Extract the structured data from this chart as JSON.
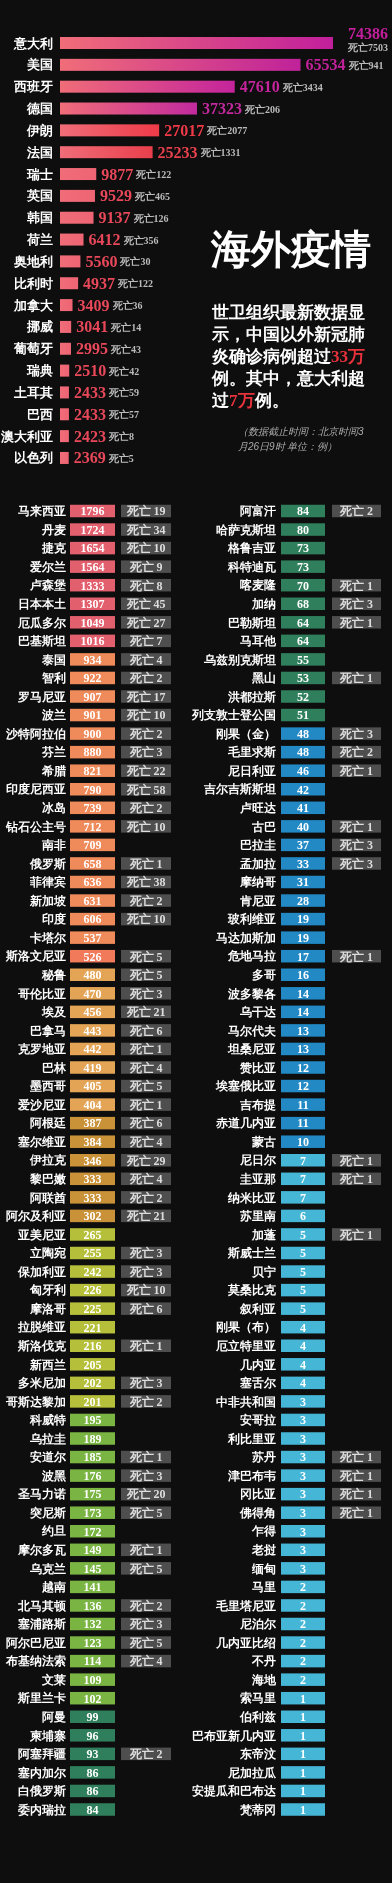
{
  "chart_data": [
    {
      "type": "bar",
      "orientation": "horizontal",
      "title": "海外疫情",
      "subtitle": "世卫组织最新数据显示，中国以外新冠肺炎确诊病例超过33万例。其中，意大利超过7万例。",
      "data_labels": true,
      "categories": [
        "意大利",
        "美国",
        "西班牙",
        "德国",
        "伊朗",
        "法国",
        "瑞士",
        "英国",
        "韩国",
        "荷兰",
        "奥地利",
        "比利时",
        "加拿大",
        "挪威",
        "葡萄牙",
        "瑞典",
        "土耳其",
        "巴西",
        "澳大利亚",
        "以色列"
      ],
      "values": [
        74386,
        65534,
        47610,
        37323,
        27017,
        25233,
        9877,
        9529,
        9137,
        6412,
        5560,
        4937,
        3409,
        3041,
        2995,
        2510,
        2433,
        2433,
        2423,
        2369
      ],
      "colors": [
        "#c21f9c",
        "#c0229a",
        "#c4249c",
        "#c22a9e",
        "#ee3a48",
        "#e8404c",
        "#ee6474",
        "#ee6474",
        "#ee6474",
        "#ee6474",
        "#ee6474",
        "#ee6474",
        "#ee6474",
        "#ee6474",
        "#ee6474",
        "#ee6474",
        "#ee6474",
        "#ee6474",
        "#ee6474",
        "#ee6474"
      ],
      "annotations": [
        "死亡7503",
        "死亡941",
        "死亡3434",
        "死亡206",
        "死亡2077",
        "死亡1331",
        "死亡122",
        "死亡465",
        "死亡126",
        "死亡356",
        "死亡30",
        "死亡122",
        "死亡36",
        "死亡14",
        "死亡43",
        "死亡42",
        "死亡59",
        "死亡57",
        "死亡8",
        "死亡5",
        "（数据截止时间：北京时间3月26日9时 单位：例）"
      ]
    },
    {
      "type": "other",
      "data_labels": true,
      "categories": [
        "马来西亚",
        "丹麦",
        "捷克",
        "爱尔兰",
        "卢森堡",
        "日本本土",
        "厄瓜多尔",
        "巴基斯坦",
        "泰国",
        "智利",
        "罗马尼亚",
        "波兰",
        "沙特阿拉伯",
        "芬兰",
        "希腊",
        "印度尼西亚",
        "冰岛",
        "钻石公主号",
        "南非",
        "俄罗斯",
        "菲律宾",
        "新加坡",
        "印度",
        "卡塔尔",
        "斯洛文尼亚",
        "秘鲁",
        "哥伦比亚",
        "埃及",
        "巴拿马",
        "克罗地亚",
        "巴林",
        "墨西哥",
        "爱沙尼亚",
        "阿根廷",
        "塞尔维亚",
        "伊拉克",
        "黎巴嫩",
        "阿联酋",
        "阿尔及利亚",
        "亚美尼亚",
        "立陶宛",
        "保加利亚",
        "匈牙利",
        "摩洛哥",
        "拉脱维亚",
        "斯洛伐克",
        "新西兰",
        "多米尼加",
        "哥斯达黎加",
        "科威特",
        "乌拉圭",
        "安道尔",
        "波黑",
        "圣马力诺",
        "突尼斯",
        "约旦",
        "摩尔多瓦",
        "乌克兰",
        "越南",
        "北马其顿",
        "塞浦路斯",
        "阿尔巴尼亚",
        "布基纳法索",
        "文莱",
        "斯里兰卡",
        "阿曼",
        "柬埔寨",
        "阿塞拜疆",
        "塞内加尔",
        "白俄罗斯",
        "委内瑞拉"
      ],
      "series": [
        {
          "values": [
            1796,
            1724,
            1654,
            1564,
            1333,
            1307,
            1049,
            1016,
            934,
            922,
            907,
            901,
            900,
            880,
            821,
            790,
            739,
            712,
            709,
            658,
            636,
            631,
            606,
            537,
            526,
            480,
            470,
            456,
            443,
            442,
            419,
            405,
            404,
            387,
            384,
            346,
            333,
            333,
            302,
            265,
            255,
            242,
            226,
            225,
            221,
            216,
            205,
            202,
            201,
            195,
            189,
            185,
            176,
            175,
            173,
            172,
            149,
            145,
            141,
            136,
            132,
            123,
            114,
            109,
            102,
            99,
            96,
            93,
            86,
            86,
            84
          ],
          "colors": [
            "#e25f6e",
            "#e25f6e",
            "#e25f6e",
            "#e25f6e",
            "#e25f6e",
            "#e25f6e",
            "#e25f6e",
            "#e25f6e",
            "#ef8a5a",
            "#ef8a5a",
            "#ef8a5a",
            "#ef8a5a",
            "#ef8a5a",
            "#ef8a5a",
            "#ef8a5a",
            "#ef8a5a",
            "#ef8a5a",
            "#ef8a5a",
            "#ef8a5a",
            "#ef8a5a",
            "#ef8a5a",
            "#ef8a5a",
            "#ef8a5a",
            "#ef8a5a",
            "#f07a5a",
            "#e3a456",
            "#e3a456",
            "#e3a456",
            "#e3a456",
            "#e3a456",
            "#e3a456",
            "#e3a456",
            "#e3a456",
            "#c99238",
            "#c99238",
            "#c99238",
            "#c99238",
            "#c99238",
            "#c99238",
            "#b5bf3a",
            "#b5bf3a",
            "#b5bf3a",
            "#b5bf3a",
            "#b5bf3a",
            "#b5bf3a",
            "#b5bf3a",
            "#b5bf3a",
            "#b5bf3a",
            "#b5bf3a",
            "#7ab443",
            "#7ab443",
            "#7ab443",
            "#7ab443",
            "#7ab443",
            "#7ab443",
            "#7ab443",
            "#7ab443",
            "#7ab443",
            "#7ab443",
            "#7ab443",
            "#7ab443",
            "#7ab443",
            "#7ab443",
            "#7ab443",
            "#7ab443",
            "#2f7f5c",
            "#2f7f5c",
            "#2f7f5c",
            "#2f7f5c",
            "#2f7f5c",
            "#2f7f5c"
          ]
        },
        {
          "color": "#4e4e4e",
          "values": [
            19,
            34,
            10,
            9,
            8,
            45,
            27,
            7,
            4,
            2,
            17,
            10,
            2,
            3,
            22,
            58,
            2,
            10,
            null,
            1,
            38,
            2,
            10,
            null,
            5,
            5,
            3,
            21,
            6,
            1,
            4,
            5,
            1,
            6,
            4,
            29,
            4,
            2,
            21,
            null,
            3,
            3,
            10,
            6,
            null,
            1,
            null,
            3,
            2,
            null,
            null,
            1,
            3,
            20,
            5,
            null,
            1,
            5,
            null,
            2,
            3,
            5,
            4,
            null,
            null,
            null,
            null,
            2,
            null,
            null,
            null
          ],
          "value_labels": [
            "死亡 19",
            "死亡 34",
            "死亡 10",
            "死亡 9",
            "死亡 8",
            "死亡 45",
            "死亡 27",
            "死亡 7",
            "死亡 4",
            "死亡 2",
            "死亡 17",
            "死亡 10",
            "死亡 2",
            "死亡 3",
            "死亡 22",
            "死亡 58",
            "死亡 2",
            "死亡 10",
            null,
            "死亡 1",
            "死亡 38",
            "死亡 2",
            "死亡 10",
            null,
            "死亡 5",
            "死亡 5",
            "死亡 3",
            "死亡 21",
            "死亡 6",
            "死亡 1",
            "死亡 4",
            "死亡 5",
            "死亡 1",
            "死亡 6",
            "死亡 4",
            "死亡 29",
            "死亡 4",
            "死亡 2",
            "死亡 21",
            null,
            "死亡 3",
            "死亡 3",
            "死亡 10",
            "死亡 6",
            null,
            "死亡 1",
            null,
            "死亡 3",
            "死亡 2",
            null,
            null,
            "死亡 1",
            "死亡 3",
            "死亡 20",
            "死亡 5",
            null,
            "死亡 1",
            "死亡 5",
            null,
            "死亡 2",
            "死亡 3",
            "死亡 5",
            "死亡 4",
            null,
            null,
            null,
            null,
            "死亡 2",
            null,
            null,
            null
          ]
        }
      ]
    },
    {
      "type": "other",
      "data_labels": true,
      "categories": [
        "阿富汗",
        "哈萨克斯坦",
        "格鲁吉亚",
        "科特迪瓦",
        "喀麦隆",
        "加纳",
        "巴勒斯坦",
        "马耳他",
        "乌兹别克斯坦",
        "黑山",
        "洪都拉斯",
        "列支敦士登公国",
        "刚果（金）",
        "毛里求斯",
        "尼日利亚",
        "吉尔吉斯斯坦",
        "卢旺达",
        "古巴",
        "巴拉圭",
        "孟加拉",
        "摩纳哥",
        "肯尼亚",
        "玻利维亚",
        "马达加斯加",
        "危地马拉",
        "多哥",
        "波多黎各",
        "乌干达",
        "马尔代夫",
        "坦桑尼亚",
        "赞比亚",
        "埃塞俄比亚",
        "吉布提",
        "赤道几内亚",
        "蒙古",
        "尼日尔",
        "圭亚那",
        "纳米比亚",
        "苏里南",
        "加蓬",
        "斯威士兰",
        "贝宁",
        "莫桑比克",
        "叙利亚",
        "刚果（布）",
        "厄立特里亚",
        "几内亚",
        "塞舌尔",
        "中非共和国",
        "安哥拉",
        "利比里亚",
        "苏丹",
        "津巴布韦",
        "冈比亚",
        "佛得角",
        "乍得",
        "老挝",
        "缅甸",
        "马里",
        "毛里塔尼亚",
        "尼泊尔",
        "几内亚比绍",
        "不丹",
        "海地",
        "索马里",
        "伯利兹",
        "巴布亚新几内亚",
        "东帝汶",
        "尼加拉瓜",
        "安提瓜和巴布达",
        "梵蒂冈"
      ],
      "series": [
        {
          "values": [
            84,
            80,
            73,
            73,
            70,
            68,
            64,
            64,
            55,
            53,
            52,
            51,
            48,
            48,
            46,
            42,
            41,
            40,
            37,
            33,
            31,
            28,
            19,
            19,
            17,
            16,
            14,
            14,
            13,
            13,
            12,
            12,
            11,
            11,
            10,
            7,
            7,
            7,
            6,
            5,
            5,
            5,
            5,
            5,
            4,
            4,
            4,
            4,
            3,
            3,
            3,
            3,
            3,
            3,
            3,
            3,
            3,
            3,
            2,
            2,
            2,
            2,
            2,
            2,
            1,
            1,
            1,
            1,
            1,
            1,
            1
          ],
          "colors": [
            "#2f7f5c",
            "#2f7f5c",
            "#2f7f5c",
            "#2f7f5c",
            "#2f7f5c",
            "#2f7f5c",
            "#2f7f5c",
            "#2f7f5c",
            "#2f7f5c",
            "#2f7f5c",
            "#2f7f5c",
            "#2f7f5c",
            "#2289c4",
            "#2289c4",
            "#2289c4",
            "#2289c4",
            "#2289c4",
            "#2289c4",
            "#2289c4",
            "#2289c4",
            "#2289c4",
            "#2289c4",
            "#2289c4",
            "#2289c4",
            "#2289c4",
            "#2289c4",
            "#2289c4",
            "#2289c4",
            "#2289c4",
            "#2289c4",
            "#2289c4",
            "#2289c4",
            "#2289c4",
            "#2289c4",
            "#2289c4",
            "#45b6d6",
            "#45b6d6",
            "#45b6d6",
            "#45b6d6",
            "#45b6d6",
            "#45b6d6",
            "#45b6d6",
            "#45b6d6",
            "#45b6d6",
            "#45b6d6",
            "#45b6d6",
            "#45b6d6",
            "#45b6d6",
            "#45b6d6",
            "#45b6d6",
            "#45b6d6",
            "#45b6d6",
            "#45b6d6",
            "#45b6d6",
            "#45b6d6",
            "#45b6d6",
            "#45b6d6",
            "#45b6d6",
            "#45b6d6",
            "#45b6d6",
            "#45b6d6",
            "#45b6d6",
            "#45b6d6",
            "#45b6d6",
            "#45b6d6",
            "#45b6d6",
            "#45b6d6",
            "#45b6d6",
            "#45b6d6",
            "#45b6d6",
            "#45b6d6"
          ]
        },
        {
          "color": "#4e4e4e",
          "values": [
            2,
            null,
            null,
            null,
            1,
            3,
            1,
            null,
            null,
            1,
            null,
            null,
            3,
            2,
            1,
            null,
            null,
            1,
            3,
            3,
            null,
            null,
            null,
            null,
            1,
            null,
            null,
            null,
            null,
            null,
            null,
            null,
            null,
            null,
            null,
            1,
            1,
            null,
            null,
            1,
            null,
            null,
            null,
            null,
            null,
            null,
            null,
            null,
            null,
            null,
            null,
            1,
            1,
            1,
            1,
            null,
            null,
            null,
            null,
            null,
            null,
            null,
            null,
            null,
            null,
            null,
            null,
            null,
            null,
            null,
            null
          ],
          "value_labels": [
            "死亡 2",
            null,
            null,
            null,
            "死亡 1",
            "死亡 3",
            "死亡 1",
            null,
            null,
            "死亡 1",
            null,
            null,
            "死亡 3",
            "死亡 2",
            "死亡 1",
            null,
            null,
            "死亡 1",
            "死亡 3",
            "死亡 3",
            null,
            null,
            null,
            null,
            "死亡 1",
            null,
            null,
            null,
            null,
            null,
            null,
            null,
            null,
            null,
            null,
            "死亡 1",
            "死亡 1",
            null,
            null,
            "死亡 1",
            null,
            null,
            null,
            null,
            null,
            null,
            null,
            null,
            null,
            null,
            null,
            "死亡 1",
            "死亡 1",
            "死亡 1",
            "死亡 1",
            null,
            null,
            null,
            null,
            null,
            null,
            null,
            null,
            null,
            null,
            null,
            null,
            null,
            null,
            null,
            null
          ]
        }
      ]
    }
  ]
}
